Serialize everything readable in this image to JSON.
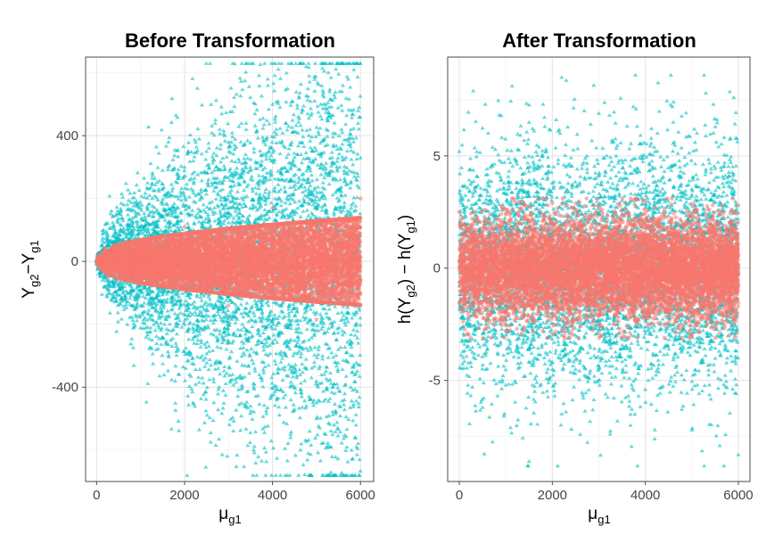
{
  "chart_data": [
    {
      "type": "scatter",
      "title": "Before Transformation",
      "xlabel": "μg1",
      "ylabel": "Yg2−Yg1",
      "xlim": [
        -250,
        6300
      ],
      "ylim": [
        -700,
        650
      ],
      "x_ticks": [
        0,
        2000,
        4000,
        6000
      ],
      "x_tick_labels": [
        "0",
        "2000",
        "4000",
        "6000"
      ],
      "y_ticks": [
        -400,
        0,
        400
      ],
      "y_tick_labels": [
        "-400",
        "0",
        "400"
      ],
      "grid": true,
      "legend": "none",
      "series": [
        {
          "marker": "triangle",
          "color": "#00BFC4",
          "description_values": "spread grows with x: |y| up to ~620 at x=6000, ~130 at x=500",
          "points": [
            [
              200,
              25
            ],
            [
              400,
              60
            ],
            [
              500,
              -90
            ],
            [
              600,
              130
            ],
            [
              800,
              -140
            ],
            [
              1000,
              170
            ],
            [
              1200,
              210
            ],
            [
              1300,
              -200
            ],
            [
              1500,
              290
            ],
            [
              1600,
              -230
            ],
            [
              1800,
              -260
            ],
            [
              2000,
              300
            ],
            [
              2200,
              320
            ],
            [
              2400,
              -300
            ],
            [
              2500,
              350
            ],
            [
              2600,
              -330
            ],
            [
              2800,
              420
            ],
            [
              3000,
              380
            ],
            [
              3200,
              -370
            ],
            [
              3400,
              440
            ],
            [
              3500,
              -460
            ],
            [
              3600,
              470
            ],
            [
              3800,
              380
            ],
            [
              4000,
              500
            ],
            [
              4100,
              -440
            ],
            [
              4300,
              440
            ],
            [
              4500,
              -470
            ],
            [
              4600,
              520
            ],
            [
              4800,
              470
            ],
            [
              5000,
              -500
            ],
            [
              5100,
              500
            ],
            [
              5300,
              540
            ],
            [
              5400,
              -520
            ],
            [
              5600,
              560
            ],
            [
              5800,
              -600
            ],
            [
              5850,
              610
            ],
            [
              5900,
              -520
            ],
            [
              5950,
              480
            ],
            [
              5980,
              -630
            ],
            [
              6000,
              330
            ]
          ]
        },
        {
          "marker": "circle",
          "color": "#F8766D",
          "description_values": "dense band: |y| up to ~60 at x=500 growing to ~200 at x=6000",
          "points": [
            [
              100,
              5
            ],
            [
              500,
              40
            ],
            [
              1000,
              -70
            ],
            [
              2000,
              110
            ],
            [
              3000,
              -140
            ],
            [
              4000,
              170
            ],
            [
              5000,
              -185
            ],
            [
              6000,
              200
            ]
          ]
        }
      ]
    },
    {
      "type": "scatter",
      "title": "After Transformation",
      "xlabel": "μg1",
      "ylabel": "h(Yg2) − h(Yg1)",
      "xlim": [
        -250,
        6250
      ],
      "ylim": [
        -9.5,
        9.4
      ],
      "x_ticks": [
        0,
        2000,
        4000,
        6000
      ],
      "x_tick_labels": [
        "0",
        "2000",
        "4000",
        "6000"
      ],
      "y_ticks": [
        -5,
        0,
        5
      ],
      "y_tick_labels": [
        "-5",
        "0",
        "5"
      ],
      "grid": true,
      "legend": "none",
      "series": [
        {
          "marker": "triangle",
          "color": "#00BFC4",
          "description_values": "roughly constant spread: y between about -8.7 and 8.5 over x 0-6000",
          "points": [
            [
              0,
              5.2
            ],
            [
              300,
              7.9
            ],
            [
              500,
              -6.2
            ],
            [
              900,
              6.8
            ],
            [
              1100,
              -7.1
            ],
            [
              1500,
              -8.6
            ],
            [
              1800,
              7.3
            ],
            [
              2200,
              8.5
            ],
            [
              2600,
              -7.4
            ],
            [
              3000,
              6.9
            ],
            [
              3400,
              -6.8
            ],
            [
              3800,
              7.1
            ],
            [
              4200,
              -7.6
            ],
            [
              4600,
              6.5
            ],
            [
              5000,
              -7.2
            ],
            [
              5300,
              7.8
            ],
            [
              5600,
              -7.9
            ],
            [
              5900,
              7.6
            ],
            [
              6000,
              -8.3
            ]
          ]
        },
        {
          "marker": "circle",
          "color": "#F8766D",
          "description_values": "dense band: y between about -3 and 3 for all x",
          "points": [
            [
              0,
              2.5
            ],
            [
              1000,
              -2.8
            ],
            [
              2000,
              2.9
            ],
            [
              3000,
              -2.9
            ],
            [
              4000,
              3.0
            ],
            [
              5000,
              -3.0
            ],
            [
              6000,
              2.8
            ]
          ]
        }
      ]
    }
  ]
}
